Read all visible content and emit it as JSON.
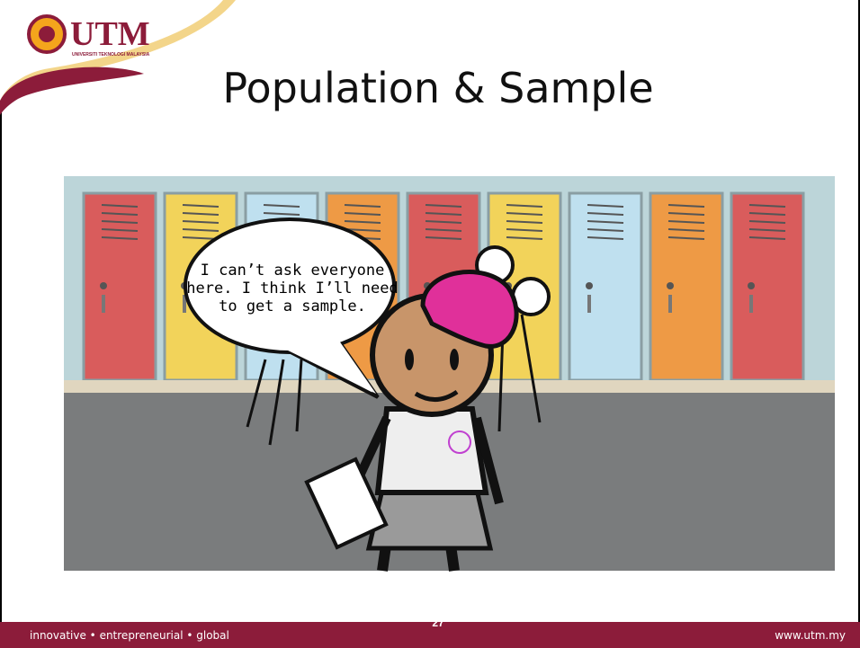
{
  "logo": {
    "name": "UTM",
    "subtitle": "UNIVERSITI TEKNOLOGI MALAYSIA"
  },
  "title": "Population & Sample",
  "speech_bubble": {
    "lines": [
      "I can’t ask everyone",
      "here. I think I’ll need",
      "to get a sample."
    ]
  },
  "footer": {
    "tagline": "innovative • entrepreneurial • global",
    "page_number": "27",
    "url": "www.utm.my"
  }
}
